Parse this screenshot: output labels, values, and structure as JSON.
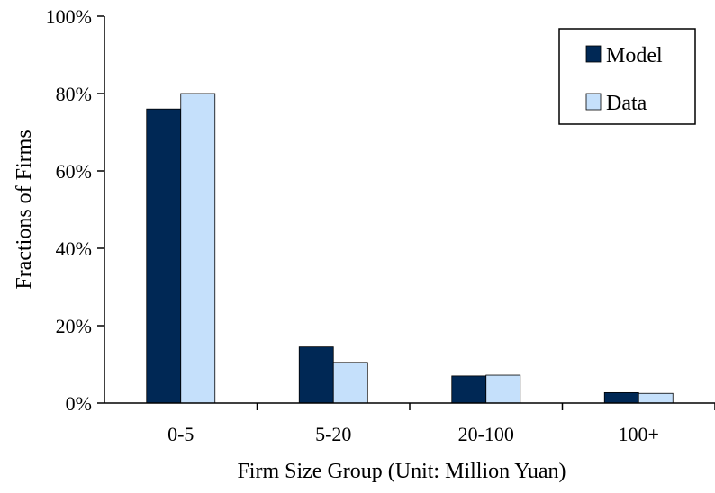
{
  "chart_data": {
    "type": "bar",
    "title": "",
    "xlabel": "Firm Size Group (Unit: Million Yuan)",
    "ylabel": "Fractions of Firms",
    "categories": [
      "0-5",
      "5-20",
      "20-100",
      "100+"
    ],
    "series": [
      {
        "name": "Model",
        "values": [
          76,
          14.5,
          7,
          2.7
        ],
        "color": "#002855"
      },
      {
        "name": "Data",
        "values": [
          80,
          10.5,
          7.2,
          2.5
        ],
        "color": "#c5e0fb"
      }
    ],
    "ylim": [
      0,
      100
    ],
    "yticks": [
      "0%",
      "20%",
      "40%",
      "60%",
      "80%",
      "100%"
    ],
    "grid": false,
    "legend_position": "top-right"
  }
}
